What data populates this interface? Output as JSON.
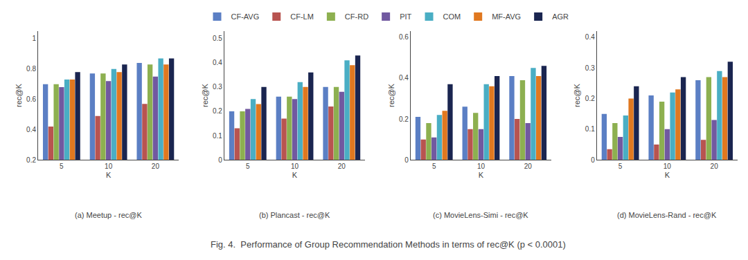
{
  "title": "Fig. 4.  Performance of Group Recommendation Methods in terms of rec@K (p < 0.0001)",
  "legend": "upper center",
  "chart_data": [
    {
      "type": "bar",
      "title": "(a) Meetup - rec@K",
      "xlabel": "K",
      "ylabel": "rec@K",
      "categories": [
        "5",
        "10",
        "20"
      ],
      "series": [
        {
          "name": "CF-AVG",
          "color": "#5b7fc4",
          "values": [
            0.7,
            0.77,
            0.84
          ]
        },
        {
          "name": "CF-LM",
          "color": "#b85450",
          "values": [
            0.42,
            0.49,
            0.57
          ]
        },
        {
          "name": "CF-RD",
          "color": "#8db050",
          "values": [
            0.7,
            0.77,
            0.83
          ]
        },
        {
          "name": "PIT",
          "color": "#7159a0",
          "values": [
            0.68,
            0.72,
            0.75
          ]
        },
        {
          "name": "COM",
          "color": "#4aaec4",
          "values": [
            0.73,
            0.8,
            0.87
          ]
        },
        {
          "name": "MF-AVG",
          "color": "#e07820",
          "values": [
            0.73,
            0.78,
            0.83
          ]
        },
        {
          "name": "AGR",
          "color": "#1a2550",
          "values": [
            0.78,
            0.83,
            0.87
          ]
        }
      ],
      "ylim": [
        0.2,
        1.05
      ],
      "yticks": [
        0.2,
        0.4,
        0.6,
        0.8,
        1
      ],
      "grid": false
    },
    {
      "type": "bar",
      "title": "(b) Plancast - rec@K",
      "xlabel": "K",
      "ylabel": "rec@K",
      "categories": [
        "5",
        "10",
        "20"
      ],
      "series": [
        {
          "name": "CF-AVG",
          "color": "#5b7fc4",
          "values": [
            0.2,
            0.26,
            0.3
          ]
        },
        {
          "name": "CF-LM",
          "color": "#b85450",
          "values": [
            0.13,
            0.17,
            0.22
          ]
        },
        {
          "name": "CF-RD",
          "color": "#8db050",
          "values": [
            0.2,
            0.26,
            0.3
          ]
        },
        {
          "name": "PIT",
          "color": "#7159a0",
          "values": [
            0.21,
            0.25,
            0.28
          ]
        },
        {
          "name": "COM",
          "color": "#4aaec4",
          "values": [
            0.25,
            0.32,
            0.41
          ]
        },
        {
          "name": "MF-AVG",
          "color": "#e07820",
          "values": [
            0.23,
            0.3,
            0.39
          ]
        },
        {
          "name": "AGR",
          "color": "#1a2550",
          "values": [
            0.3,
            0.36,
            0.43
          ]
        }
      ],
      "ylim": [
        0,
        0.53
      ],
      "yticks": [
        0,
        0.1,
        0.2,
        0.3,
        0.4,
        0.5
      ],
      "grid": false
    },
    {
      "type": "bar",
      "title": "(c) MovieLens-Simi - rec@K",
      "xlabel": "K",
      "ylabel": "rec@K",
      "categories": [
        "5",
        "10",
        "20"
      ],
      "series": [
        {
          "name": "CF-AVG",
          "color": "#5b7fc4",
          "values": [
            0.21,
            0.26,
            0.41
          ]
        },
        {
          "name": "CF-LM",
          "color": "#b85450",
          "values": [
            0.1,
            0.15,
            0.2
          ]
        },
        {
          "name": "CF-RD",
          "color": "#8db050",
          "values": [
            0.18,
            0.23,
            0.39
          ]
        },
        {
          "name": "PIT",
          "color": "#7159a0",
          "values": [
            0.11,
            0.15,
            0.18
          ]
        },
        {
          "name": "COM",
          "color": "#4aaec4",
          "values": [
            0.22,
            0.37,
            0.45
          ]
        },
        {
          "name": "MF-AVG",
          "color": "#e07820",
          "values": [
            0.24,
            0.36,
            0.41
          ]
        },
        {
          "name": "AGR",
          "color": "#1a2550",
          "values": [
            0.37,
            0.41,
            0.46
          ]
        }
      ],
      "ylim": [
        0,
        0.63
      ],
      "yticks": [
        0,
        0.2,
        0.4,
        0.6
      ],
      "grid": false
    },
    {
      "type": "bar",
      "title": "(d) MovieLens-Rand - rec@K",
      "xlabel": "K",
      "ylabel": "rec@K",
      "categories": [
        "5",
        "10",
        "20"
      ],
      "series": [
        {
          "name": "CF-AVG",
          "color": "#5b7fc4",
          "values": [
            0.15,
            0.21,
            0.26
          ]
        },
        {
          "name": "CF-LM",
          "color": "#b85450",
          "values": [
            0.035,
            0.05,
            0.065
          ]
        },
        {
          "name": "CF-RD",
          "color": "#8db050",
          "values": [
            0.12,
            0.19,
            0.27
          ]
        },
        {
          "name": "PIT",
          "color": "#7159a0",
          "values": [
            0.075,
            0.1,
            0.13
          ]
        },
        {
          "name": "COM",
          "color": "#4aaec4",
          "values": [
            0.145,
            0.22,
            0.29
          ]
        },
        {
          "name": "MF-AVG",
          "color": "#e07820",
          "values": [
            0.2,
            0.23,
            0.27
          ]
        },
        {
          "name": "AGR",
          "color": "#1a2550",
          "values": [
            0.24,
            0.27,
            0.32
          ]
        }
      ],
      "ylim": [
        0,
        0.42
      ],
      "yticks": [
        0,
        0.1,
        0.2,
        0.3,
        0.4
      ],
      "grid": false
    }
  ]
}
